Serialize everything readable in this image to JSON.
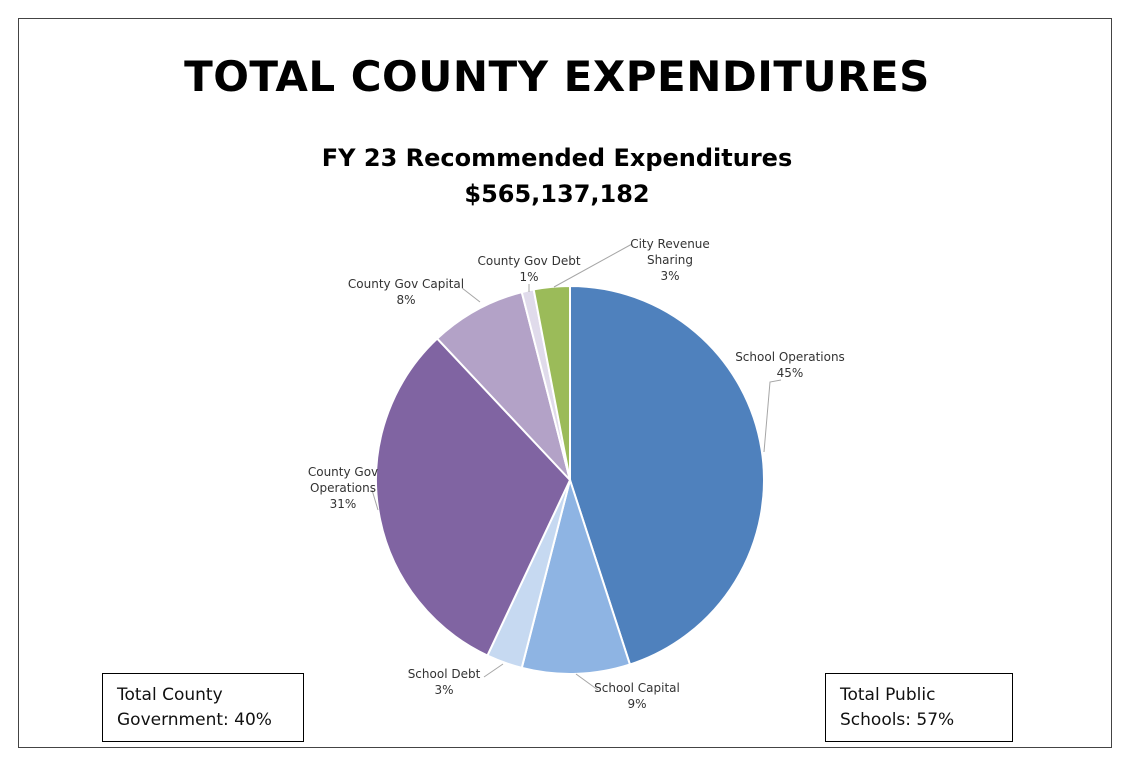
{
  "chart_data": {
    "type": "pie",
    "title": "TOTAL COUNTY EXPENDITURES",
    "subtitle_lines": [
      "FY 23 Recommended Expenditures",
      "$565,137,182"
    ],
    "slices": [
      {
        "label_lines": [
          "School Operations"
        ],
        "pct_label": "45%",
        "value": 45,
        "color": "#4f81bd"
      },
      {
        "label_lines": [
          "School Capital"
        ],
        "pct_label": "9%",
        "value": 9,
        "color": "#8eb4e3"
      },
      {
        "label_lines": [
          "School Debt"
        ],
        "pct_label": "3%",
        "value": 3,
        "color": "#c6d9f1"
      },
      {
        "label_lines": [
          "County Gov",
          "Operations"
        ],
        "pct_label": "31%",
        "value": 31,
        "color": "#8064a2"
      },
      {
        "label_lines": [
          "County Gov Capital"
        ],
        "pct_label": "8%",
        "value": 8,
        "color": "#b3a2c7"
      },
      {
        "label_lines": [
          "County Gov Debt"
        ],
        "pct_label": "1%",
        "value": 1,
        "color": "#e0dbeb"
      },
      {
        "label_lines": [
          "City Revenue",
          "Sharing"
        ],
        "pct_label": "3%",
        "value": 3,
        "color": "#9bbb59"
      }
    ]
  },
  "boxes": {
    "left": {
      "line1": "Total County",
      "line2": "Government: 40%"
    },
    "right": {
      "line1": "Total Public",
      "line2": "Schools: 57%"
    }
  }
}
